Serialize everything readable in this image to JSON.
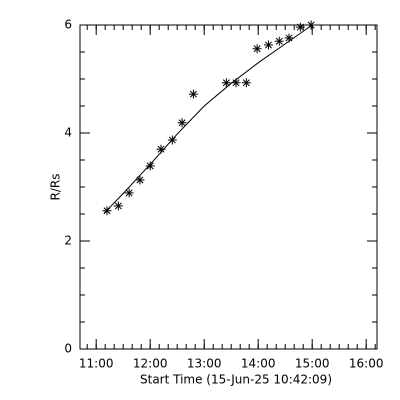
{
  "chart_data": {
    "type": "scatter",
    "xlabel": "Start Time (15-Jun-25 10:42:09)",
    "ylabel": "R/Rs",
    "xlim": [
      10.7,
      16.2
    ],
    "ylim": [
      0,
      6
    ],
    "xticks": [
      {
        "value": 11,
        "label": "11:00"
      },
      {
        "value": 12,
        "label": "12:00"
      },
      {
        "value": 13,
        "label": "13:00"
      },
      {
        "value": 14,
        "label": "14:00"
      },
      {
        "value": 15,
        "label": "15:00"
      },
      {
        "value": 16,
        "label": "16:00"
      }
    ],
    "yticks": [
      0,
      2,
      4,
      6
    ],
    "x_minor_per_major": 6,
    "y_minor_per_major": 4,
    "color": "#000000",
    "series": [
      {
        "marker": "asterisk",
        "x": [
          11.2,
          11.41,
          11.61,
          11.81,
          12.0,
          12.2,
          12.41,
          12.59,
          12.8,
          13.41,
          13.59,
          13.78,
          13.98,
          14.19,
          14.39,
          14.57,
          14.78,
          14.98
        ],
        "values": [
          2.56,
          2.65,
          2.89,
          3.13,
          3.39,
          3.7,
          3.87,
          4.19,
          4.72,
          4.93,
          4.93,
          4.93,
          5.56,
          5.63,
          5.7,
          5.76,
          5.96,
          6.0
        ]
      },
      {
        "marker": "line",
        "x": [
          11.15,
          11.5,
          12.0,
          12.5,
          13.0,
          13.5,
          14.0,
          14.5,
          15.0
        ],
        "values": [
          2.52,
          2.88,
          3.42,
          3.98,
          4.5,
          4.92,
          5.3,
          5.65,
          6.0
        ]
      }
    ]
  }
}
